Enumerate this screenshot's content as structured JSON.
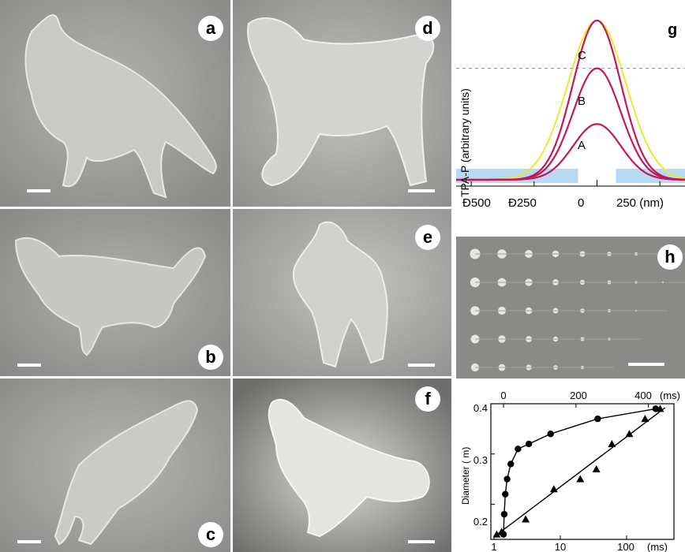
{
  "panels": {
    "a": {
      "label": "a"
    },
    "b": {
      "label": "b"
    },
    "c": {
      "label": "c"
    },
    "d": {
      "label": "d"
    },
    "e": {
      "label": "e"
    },
    "f": {
      "label": "f"
    },
    "h": {
      "label": "h"
    }
  },
  "panel_g": {
    "label": "g",
    "ylabel": "TPA-P (arbitrary units)",
    "xticks": [
      "Ð500",
      "Ð250",
      "0",
      "250 (nm)"
    ],
    "curve_labels": [
      "A",
      "B",
      "C"
    ],
    "colors": {
      "curves": "#c2185b",
      "envelope": "#f0e830",
      "threshold_fill": "#b9d8f2",
      "threshold_line": "#a0a0a0"
    }
  },
  "panel_i": {
    "ylabel": "Diameter ( m)",
    "top_ticks": [
      "0",
      "200",
      "400"
    ],
    "top_unit": "(ms)",
    "bottom_ticks": [
      "1",
      "10",
      "100"
    ],
    "bottom_unit": "(ms)",
    "yticks": [
      "0.2",
      "0.3",
      "0.4"
    ]
  },
  "chart_data": [
    {
      "type": "line",
      "title": "",
      "xlabel": "",
      "ylabel": "TPA-P (arbitrary units)",
      "x": [
        -500,
        -250,
        0,
        250
      ],
      "xlim": [
        -560,
        350
      ],
      "series": [
        {
          "name": "A",
          "values_peak": 0.35
        },
        {
          "name": "B",
          "values_peak": 0.7
        },
        {
          "name": "C",
          "values_peak": 1.0
        }
      ],
      "threshold": 0.72
    },
    {
      "type": "scatter",
      "title": "",
      "xlabel": "",
      "ylabel": "Diameter ( m)",
      "ylim": [
        0.13,
        0.4
      ],
      "series": [
        {
          "marker": "circle",
          "axis": "linear-top",
          "x": [
            0,
            2,
            5,
            10,
            20,
            40,
            70,
            130,
            260,
            420
          ],
          "y": [
            0.14,
            0.18,
            0.22,
            0.25,
            0.28,
            0.31,
            0.32,
            0.34,
            0.37,
            0.39
          ]
        },
        {
          "marker": "triangle",
          "axis": "log-bottom",
          "x": [
            1.1,
            1.3,
            3,
            8,
            20,
            35,
            60,
            110,
            190,
            320
          ],
          "y": [
            0.14,
            0.145,
            0.17,
            0.23,
            0.25,
            0.27,
            0.32,
            0.34,
            0.37,
            0.39
          ]
        }
      ]
    }
  ]
}
